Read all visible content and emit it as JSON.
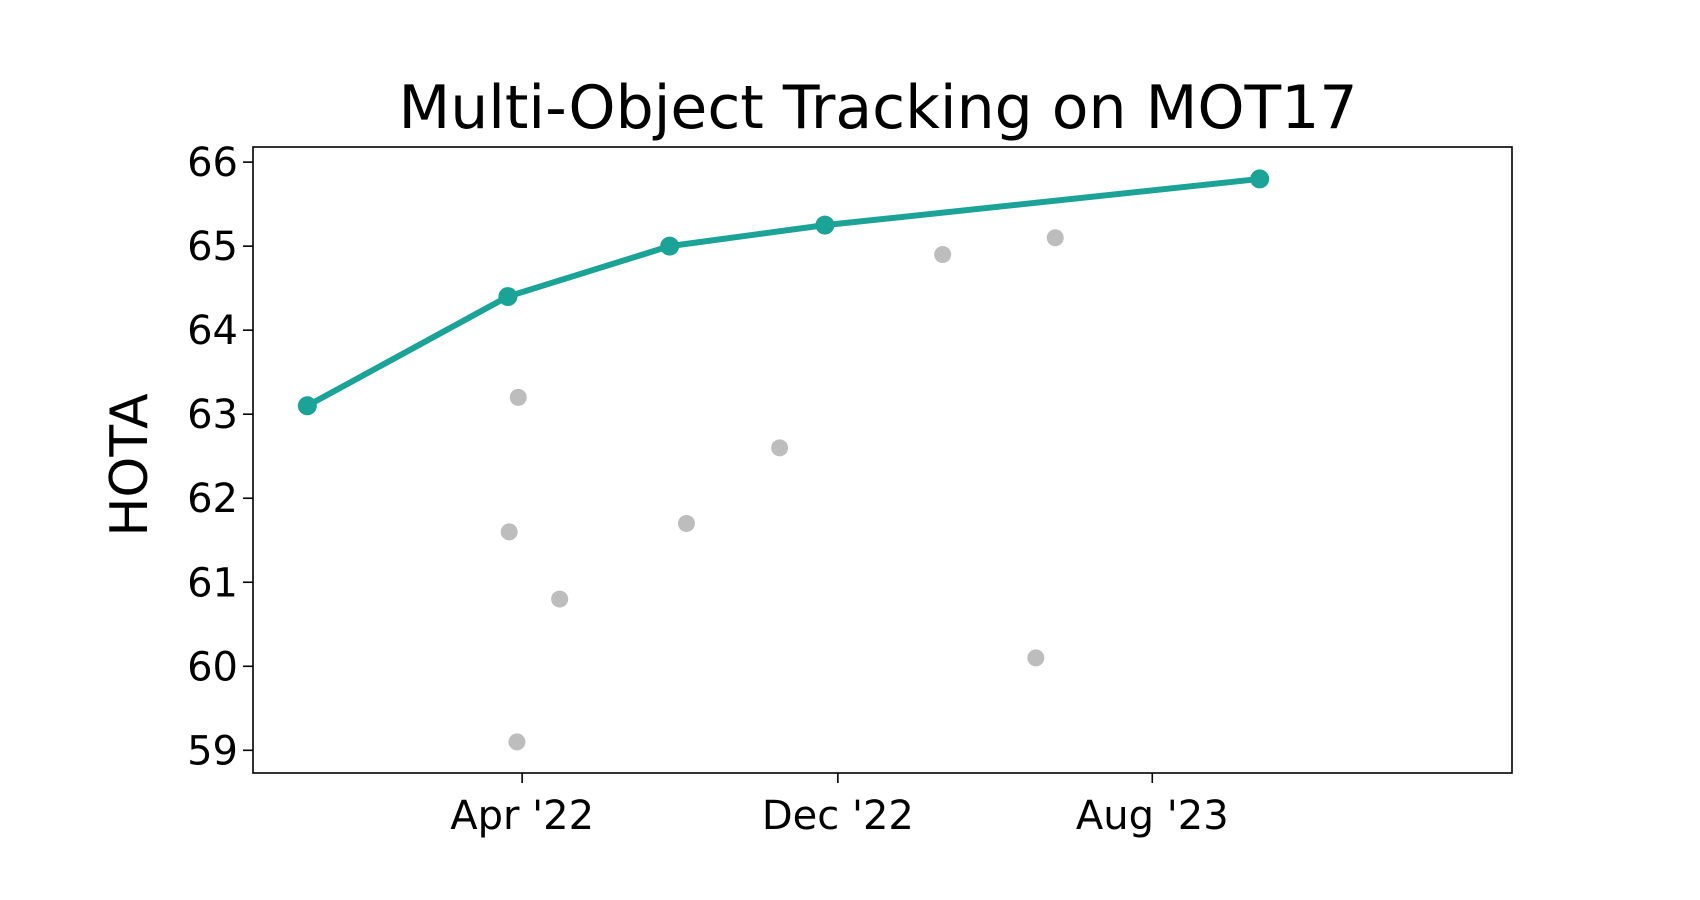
{
  "chart_data": {
    "type": "scatter",
    "title": "Multi-Object Tracking on MOT17",
    "xlabel": "",
    "ylabel": "HOTA",
    "x_tick_labels": [
      {
        "date": "2022-04-01",
        "label": "Apr '22"
      },
      {
        "date": "2022-12-01",
        "label": "Dec '22"
      },
      {
        "date": "2023-08-01",
        "label": "Aug '23"
      }
    ],
    "y_ticks": [
      59,
      60,
      61,
      62,
      63,
      64,
      65,
      66
    ],
    "xlim": [
      "2021-09-05",
      "2024-05-05"
    ],
    "ylim": [
      58.73,
      66.18
    ],
    "grid": false,
    "series": [
      {
        "role": "state-of-the-art frontier",
        "style": "line-with-markers",
        "color": "#1aa396",
        "points": [
          {
            "x": "2021-10-17",
            "y": 63.1
          },
          {
            "x": "2022-03-21",
            "y": 64.4
          },
          {
            "x": "2022-07-24",
            "y": 65.0
          },
          {
            "x": "2022-11-21",
            "y": 65.25
          },
          {
            "x": "2023-10-23",
            "y": 65.8
          }
        ]
      },
      {
        "role": "other methods",
        "style": "markers",
        "color": "#bdbdbd",
        "points": [
          {
            "x": "2022-03-29",
            "y": 63.2
          },
          {
            "x": "2022-03-22",
            "y": 61.6
          },
          {
            "x": "2022-03-28",
            "y": 59.1
          },
          {
            "x": "2022-04-30",
            "y": 60.8
          },
          {
            "x": "2022-08-06",
            "y": 61.7
          },
          {
            "x": "2022-10-17",
            "y": 62.6
          },
          {
            "x": "2023-02-20",
            "y": 64.9
          },
          {
            "x": "2023-05-03",
            "y": 60.1
          },
          {
            "x": "2023-05-18",
            "y": 65.1
          }
        ]
      }
    ]
  }
}
